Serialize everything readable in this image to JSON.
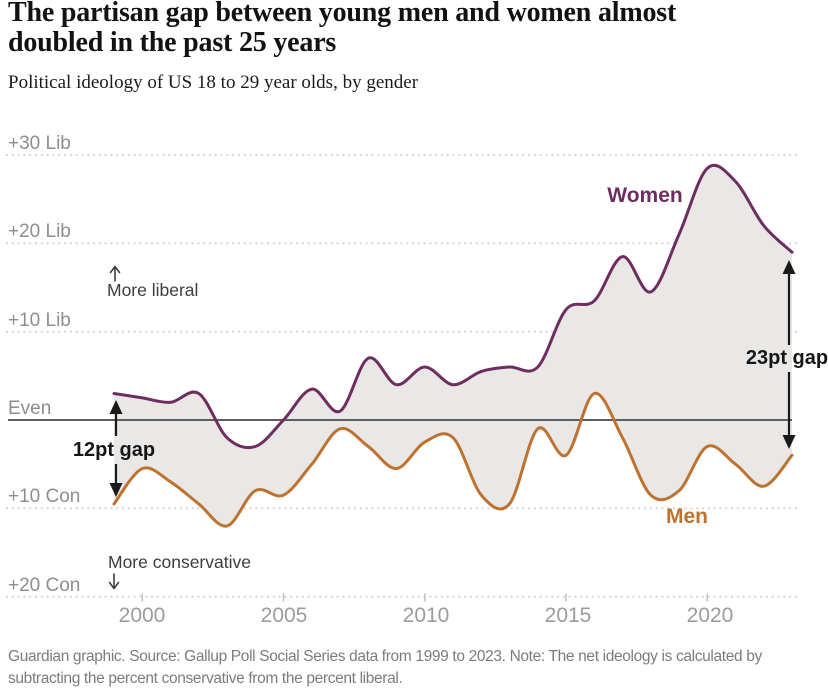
{
  "header": {
    "title": "The partisan gap between young men and women almost doubled in the past 25 years",
    "subtitle": "Political ideology of US 18 to 29 year olds, by gender"
  },
  "chart_data": {
    "type": "line",
    "title": "Political ideology of US 18 to 29 year olds, by gender",
    "x": [
      1999,
      2000,
      2001,
      2002,
      2003,
      2004,
      2005,
      2006,
      2007,
      2008,
      2009,
      2010,
      2011,
      2012,
      2013,
      2014,
      2015,
      2016,
      2017,
      2018,
      2019,
      2020,
      2021,
      2022,
      2023
    ],
    "series": [
      {
        "name": "Women",
        "color": "#6e2d5f",
        "values": [
          3,
          2.5,
          2,
          3,
          -2,
          -3,
          0,
          3.5,
          1,
          7,
          4,
          6,
          4,
          5.5,
          6,
          6,
          12.5,
          13.5,
          18.5,
          14.5,
          21,
          28.5,
          27,
          22,
          19
        ]
      },
      {
        "name": "Men",
        "color": "#bd722f",
        "values": [
          -9.5,
          -5.5,
          -7,
          -9.5,
          -12,
          -8,
          -8.5,
          -5,
          -1,
          -3,
          -5.5,
          -2.5,
          -2,
          -8.5,
          -9.5,
          -1,
          -4,
          3,
          -2,
          -8.5,
          -8,
          -3,
          -5,
          -7.5,
          -4
        ]
      }
    ],
    "band_fill": "#e9e8e6",
    "grid_color": "#d2d2d2",
    "even_line_color": "#5d5d5d",
    "xlim": [
      1999,
      2023
    ],
    "ylim": [
      -20,
      30
    ],
    "y_ticks": [
      {
        "value": 30,
        "label": "+30 Lib"
      },
      {
        "value": 20,
        "label": "+20 Lib"
      },
      {
        "value": 10,
        "label": "+10 Lib"
      },
      {
        "value": 0,
        "label": "Even"
      },
      {
        "value": -10,
        "label": "+10 Con"
      },
      {
        "value": -20,
        "label": "+20 Con"
      }
    ],
    "x_ticks": [
      2000,
      2005,
      2010,
      2015,
      2020
    ],
    "annotations": {
      "more_liberal": "More liberal",
      "more_conservative": "More conservative",
      "gap_start": {
        "label": "12pt gap",
        "year": 1999,
        "top_value": 3,
        "bottom_value": -9.5
      },
      "gap_end": {
        "label": "23pt gap",
        "year": 2023,
        "top_value": 19,
        "bottom_value": -4
      }
    }
  },
  "footer": {
    "credit": "Guardian graphic. Source: Gallup Poll Social Series data from 1999 to 2023. Note: The net ideology is calculated by subtracting the percent conservative from the percent liberal."
  }
}
